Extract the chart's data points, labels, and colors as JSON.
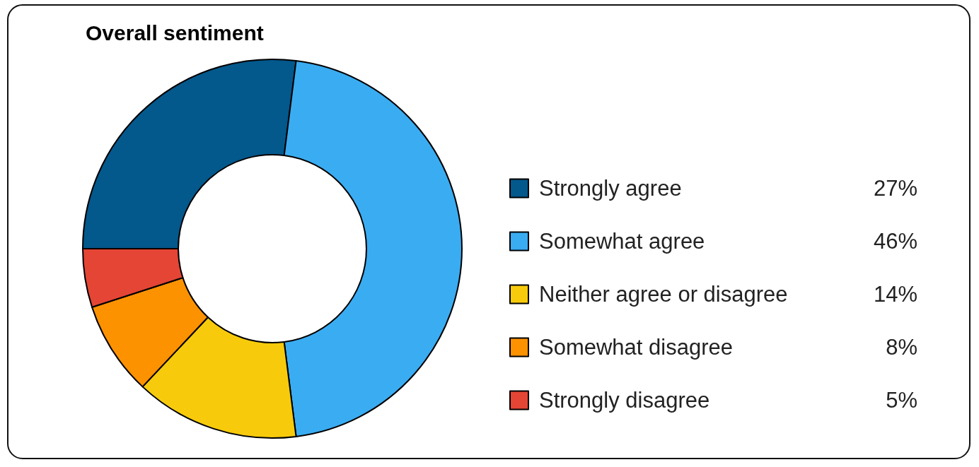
{
  "chart_data": {
    "type": "donut",
    "title": "Overall sentiment",
    "categories": [
      "Strongly agree",
      "Somewhat agree",
      "Neither agree or disagree",
      "Somewhat disagree",
      "Strongly disagree"
    ],
    "values": [
      27,
      46,
      14,
      8,
      5
    ],
    "colors": [
      "#03588c",
      "#3aacf2",
      "#f7cb0b",
      "#fd9201",
      "#e54535"
    ],
    "value_labels": [
      "27%",
      "46%",
      "14%",
      "8%",
      "5%"
    ],
    "legend": "right"
  }
}
